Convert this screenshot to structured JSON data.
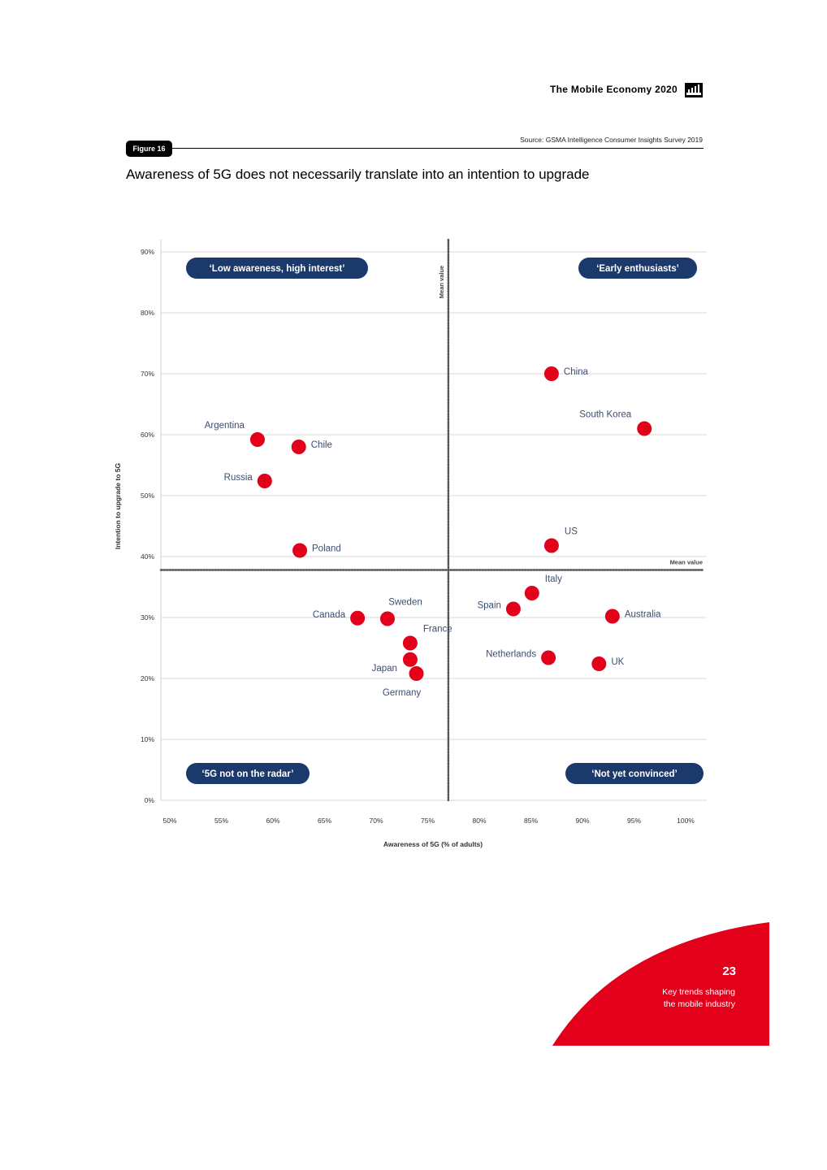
{
  "header": {
    "title": "The Mobile Economy 2020",
    "logo_icon": "gsma-logo-icon"
  },
  "figure": {
    "label": "Figure 16",
    "source": "Source: GSMA Intelligence Consumer Insights Survey 2019",
    "title": "Awareness of 5G does not necessarily translate into an intention to upgrade"
  },
  "chart_data": {
    "type": "scatter",
    "title": "Awareness of 5G does not necessarily translate into an intention to upgrade",
    "xlabel": "Awareness of 5G (% of adults)",
    "ylabel": "Intention to upgrade to 5G",
    "xlim": [
      50,
      100
    ],
    "ylim": [
      0,
      90
    ],
    "xticks": [
      50,
      55,
      60,
      65,
      70,
      75,
      80,
      85,
      90,
      95,
      100
    ],
    "yticks": [
      0,
      10,
      20,
      30,
      40,
      50,
      60,
      70,
      80,
      90
    ],
    "tick_suffix": "%",
    "grid": true,
    "mean_x": 77.0,
    "mean_y": 37.8,
    "mean_label": "Mean value",
    "point_color": "#e2001a",
    "quadrant_color": "#1b3a6b",
    "label_color": "#3b4e72",
    "quadrants": [
      {
        "position": "top-left",
        "label": "‘Low awareness, high interest’"
      },
      {
        "position": "top-right",
        "label": "‘Early enthusiasts’"
      },
      {
        "position": "bottom-left",
        "label": "‘5G not on the radar’"
      },
      {
        "position": "bottom-right",
        "label": "‘Not yet convinced’"
      }
    ],
    "points": [
      {
        "name": "China",
        "x": 87.0,
        "y": 70.0,
        "label_side": "right"
      },
      {
        "name": "South Korea",
        "x": 96.0,
        "y": 61.0,
        "label_side": "upper-left"
      },
      {
        "name": "Argentina",
        "x": 58.5,
        "y": 59.2,
        "label_side": "upper-left"
      },
      {
        "name": "Chile",
        "x": 62.5,
        "y": 58.0,
        "label_side": "right"
      },
      {
        "name": "Russia",
        "x": 59.2,
        "y": 52.4,
        "label_side": "left"
      },
      {
        "name": "Poland",
        "x": 62.6,
        "y": 41.0,
        "label_side": "right"
      },
      {
        "name": "US",
        "x": 87.0,
        "y": 41.8,
        "label_side": "upper-right"
      },
      {
        "name": "Italy",
        "x": 85.1,
        "y": 34.0,
        "label_side": "upper-right"
      },
      {
        "name": "Spain",
        "x": 83.3,
        "y": 31.4,
        "label_side": "left"
      },
      {
        "name": "Australia",
        "x": 92.9,
        "y": 30.2,
        "label_side": "right"
      },
      {
        "name": "Canada",
        "x": 68.2,
        "y": 29.9,
        "label_side": "left"
      },
      {
        "name": "Sweden",
        "x": 71.1,
        "y": 29.8,
        "label_side": "above"
      },
      {
        "name": "France",
        "x": 73.3,
        "y": 25.8,
        "label_side": "upper-right"
      },
      {
        "name": "Japan",
        "x": 73.3,
        "y": 23.1,
        "label_side": "lower-left"
      },
      {
        "name": "Germany",
        "x": 73.9,
        "y": 20.8,
        "label_side": "below"
      },
      {
        "name": "Netherlands",
        "x": 86.7,
        "y": 23.4,
        "label_side": "left"
      },
      {
        "name": "UK",
        "x": 91.6,
        "y": 22.4,
        "label_side": "right"
      }
    ]
  },
  "footer": {
    "page_number": "23",
    "section_line1": "Key trends shaping",
    "section_line2": "the mobile industry",
    "accent_color": "#e2001a"
  }
}
